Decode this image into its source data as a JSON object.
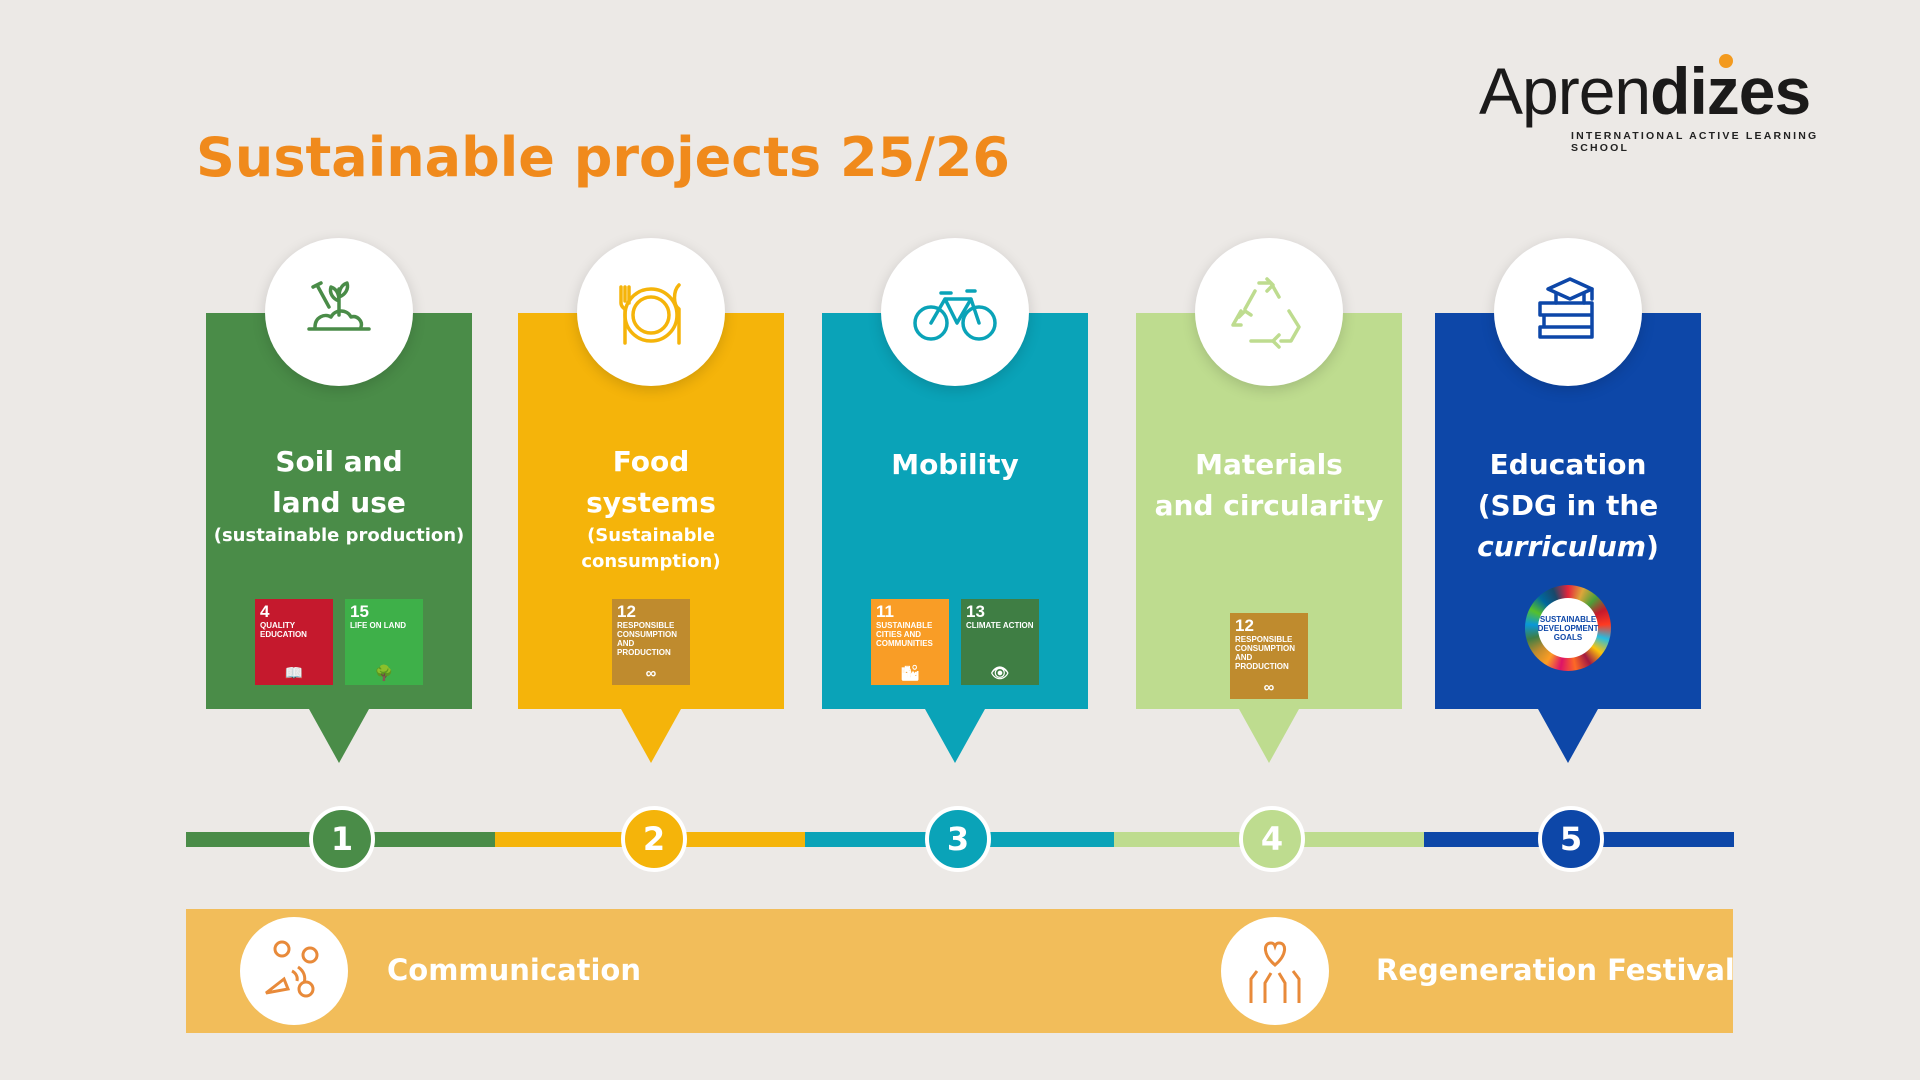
{
  "title": "Sustainable projects 25/26",
  "logo": {
    "text_light": "Apren",
    "text_bold": "dizes",
    "tagline": "INTERNATIONAL ACTIVE LEARNING SCHOOL",
    "dot_color": "#f39a1e"
  },
  "projects": [
    {
      "number": "1",
      "title_lines": [
        "Soil and",
        "land use"
      ],
      "subtitle": "(sustainable production)",
      "color": "#4a8c48",
      "icon": "plant-shovel-icon",
      "badges": [
        {
          "n": "4",
          "label": "QUALITY EDUCATION",
          "color": "#c5192d",
          "glyph": "📖"
        },
        {
          "n": "15",
          "label": "LIFE ON LAND",
          "color": "#3eb049",
          "glyph": "🌳"
        }
      ]
    },
    {
      "number": "2",
      "title_lines": [
        "Food",
        "systems"
      ],
      "subtitle": "(Sustainable consumption)",
      "color": "#f5b40a",
      "icon": "plate-cutlery-icon",
      "badges": [
        {
          "n": "12",
          "label": "RESPONSIBLE CONSUMPTION AND PRODUCTION",
          "color": "#bf8b2e",
          "glyph": "∞"
        }
      ]
    },
    {
      "number": "3",
      "title_lines": [
        "Mobility"
      ],
      "subtitle": "",
      "color": "#0aa3b8",
      "icon": "bicycle-icon",
      "badges": [
        {
          "n": "11",
          "label": "SUSTAINABLE CITIES AND COMMUNITIES",
          "color": "#f99d26",
          "glyph": "🏙"
        },
        {
          "n": "13",
          "label": "CLIMATE ACTION",
          "color": "#3f7e44",
          "glyph": "👁"
        }
      ]
    },
    {
      "number": "4",
      "title_lines": [
        "Materials",
        "and circularity"
      ],
      "subtitle": "",
      "color": "#bedc8f",
      "icon": "recycle-icon",
      "badges": [
        {
          "n": "12",
          "label": "RESPONSIBLE CONSUMPTION AND PRODUCTION",
          "color": "#bf8b2e",
          "glyph": "∞"
        }
      ]
    },
    {
      "number": "5",
      "title_lines": [
        "Education",
        "(SDG in the"
      ],
      "title_italic": "curriculum",
      "title_end": ")",
      "subtitle": "",
      "color": "#0d47a8",
      "icon": "books-graduation-cap-icon",
      "badges": [
        {
          "sdg_wheel": true,
          "label": "SUSTAINABLE DEVELOPMENT GOALS"
        }
      ]
    }
  ],
  "banner": {
    "color": "#f2bd5a",
    "left_label": "Communication",
    "right_label": "Regeneration Festival",
    "left_icon": "people-megaphone-icon",
    "right_icon": "hands-heart-icon"
  }
}
